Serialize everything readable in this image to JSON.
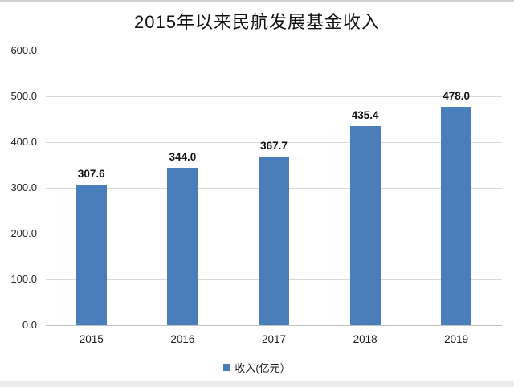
{
  "chart_data": {
    "type": "bar",
    "title": "2015年以来民航发展基金收入",
    "categories": [
      "2015",
      "2016",
      "2017",
      "2018",
      "2019"
    ],
    "series": [
      {
        "name": "收入(亿元）",
        "values": [
          307.6,
          344.0,
          367.7,
          435.4,
          478.0
        ]
      }
    ],
    "data_labels": [
      "307.6",
      "344.0",
      "367.7",
      "435.4",
      "478.0"
    ],
    "xlabel": "",
    "ylabel": "",
    "ylim": [
      0,
      600
    ],
    "ytick_step": 100,
    "ytick_labels": [
      "0.0",
      "100.0",
      "200.0",
      "300.0",
      "400.0",
      "500.0",
      "600.0"
    ],
    "grid": true,
    "legend": "收入(亿元）",
    "legend_position": "bottom",
    "colors": {
      "bar": "#4a7ebb",
      "gridline": "#d9d9d9",
      "axis_line": "#bfbfbf",
      "text": "#111111"
    }
  }
}
